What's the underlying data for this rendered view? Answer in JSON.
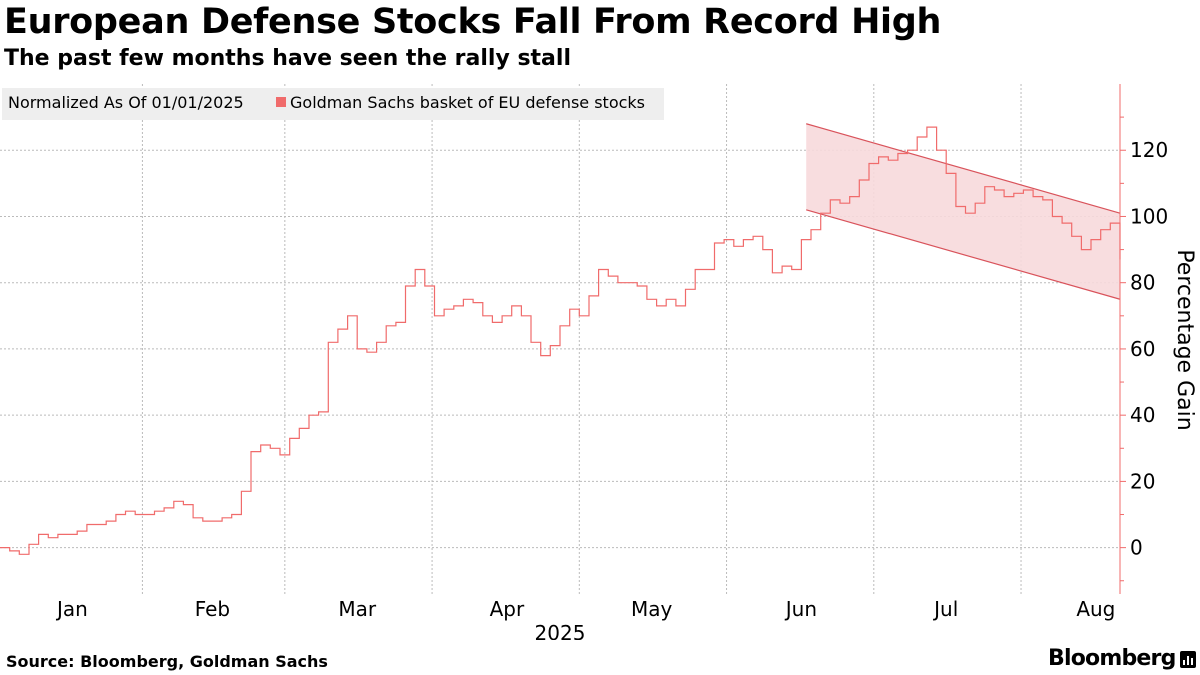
{
  "header": {
    "title": "European Defense Stocks Fall From Record High",
    "subtitle": "The past few months have seen the rally stall"
  },
  "legend": {
    "note": "Normalized As Of 01/01/2025",
    "series_label": "Goldman Sachs basket of EU defense stocks"
  },
  "footer": {
    "source": "Source: Bloomberg, Goldman Sachs",
    "brand": "Bloomberg"
  },
  "colors": {
    "series": "#f06b6b",
    "channel_fill": "#f7d9dc",
    "channel_line": "#d9535b",
    "axis": "#f06b6b",
    "grid": "#bbbbbb"
  },
  "chart_data": {
    "type": "line",
    "title": "European Defense Stocks Fall From Record High",
    "subtitle": "The past few months have seen the rally stall",
    "xlabel": "2025",
    "ylabel": "Percentage Gain",
    "y_axis_position": "right",
    "ylim": [
      -14,
      140
    ],
    "yticks": [
      0,
      20,
      40,
      60,
      80,
      100,
      120
    ],
    "x_range": [
      "2025-01-01",
      "2025-08-21"
    ],
    "xtick_labels": [
      {
        "label": "Jan",
        "date": "2025-01-16"
      },
      {
        "label": "Feb",
        "date": "2025-02-14"
      },
      {
        "label": "Mar",
        "date": "2025-03-16"
      },
      {
        "label": "Apr",
        "date": "2025-04-16"
      },
      {
        "label": "May",
        "date": "2025-05-16"
      },
      {
        "label": "Jun",
        "date": "2025-06-16"
      },
      {
        "label": "Jul",
        "date": "2025-07-16"
      },
      {
        "label": "Aug",
        "date": "2025-08-16"
      }
    ],
    "grid": true,
    "legend_placement": "top-left",
    "series": [
      {
        "name": "Goldman Sachs basket of EU defense stocks",
        "style": "step",
        "points": [
          [
            "2025-01-01",
            0
          ],
          [
            "2025-01-03",
            -1
          ],
          [
            "2025-01-05",
            -2
          ],
          [
            "2025-01-07",
            1
          ],
          [
            "2025-01-09",
            4
          ],
          [
            "2025-01-11",
            3
          ],
          [
            "2025-01-13",
            4
          ],
          [
            "2025-01-15",
            4
          ],
          [
            "2025-01-17",
            5
          ],
          [
            "2025-01-19",
            7
          ],
          [
            "2025-01-21",
            7
          ],
          [
            "2025-01-23",
            8
          ],
          [
            "2025-01-25",
            10
          ],
          [
            "2025-01-27",
            11
          ],
          [
            "2025-01-29",
            10
          ],
          [
            "2025-01-31",
            10
          ],
          [
            "2025-02-02",
            11
          ],
          [
            "2025-02-04",
            12
          ],
          [
            "2025-02-06",
            14
          ],
          [
            "2025-02-08",
            13
          ],
          [
            "2025-02-10",
            9
          ],
          [
            "2025-02-12",
            8
          ],
          [
            "2025-02-14",
            8
          ],
          [
            "2025-02-16",
            9
          ],
          [
            "2025-02-18",
            10
          ],
          [
            "2025-02-20",
            17
          ],
          [
            "2025-02-22",
            29
          ],
          [
            "2025-02-24",
            31
          ],
          [
            "2025-02-26",
            30
          ],
          [
            "2025-02-28",
            28
          ],
          [
            "2025-03-02",
            33
          ],
          [
            "2025-03-04",
            36
          ],
          [
            "2025-03-06",
            40
          ],
          [
            "2025-03-08",
            41
          ],
          [
            "2025-03-10",
            62
          ],
          [
            "2025-03-12",
            66
          ],
          [
            "2025-03-14",
            70
          ],
          [
            "2025-03-16",
            60
          ],
          [
            "2025-03-18",
            59
          ],
          [
            "2025-03-20",
            62
          ],
          [
            "2025-03-22",
            67
          ],
          [
            "2025-03-24",
            68
          ],
          [
            "2025-03-26",
            79
          ],
          [
            "2025-03-28",
            84
          ],
          [
            "2025-03-30",
            79
          ],
          [
            "2025-04-01",
            70
          ],
          [
            "2025-04-03",
            72
          ],
          [
            "2025-04-05",
            73
          ],
          [
            "2025-04-07",
            75
          ],
          [
            "2025-04-09",
            74
          ],
          [
            "2025-04-11",
            70
          ],
          [
            "2025-04-13",
            68
          ],
          [
            "2025-04-15",
            70
          ],
          [
            "2025-04-17",
            73
          ],
          [
            "2025-04-19",
            70
          ],
          [
            "2025-04-21",
            62
          ],
          [
            "2025-04-23",
            58
          ],
          [
            "2025-04-25",
            61
          ],
          [
            "2025-04-27",
            67
          ],
          [
            "2025-04-29",
            72
          ],
          [
            "2025-05-01",
            70
          ],
          [
            "2025-05-03",
            76
          ],
          [
            "2025-05-05",
            84
          ],
          [
            "2025-05-07",
            82
          ],
          [
            "2025-05-09",
            80
          ],
          [
            "2025-05-11",
            80
          ],
          [
            "2025-05-13",
            79
          ],
          [
            "2025-05-15",
            75
          ],
          [
            "2025-05-17",
            73
          ],
          [
            "2025-05-19",
            75
          ],
          [
            "2025-05-21",
            73
          ],
          [
            "2025-05-23",
            78
          ],
          [
            "2025-05-25",
            84
          ],
          [
            "2025-05-27",
            84
          ],
          [
            "2025-05-29",
            92
          ],
          [
            "2025-05-31",
            93
          ],
          [
            "2025-06-02",
            91
          ],
          [
            "2025-06-04",
            93
          ],
          [
            "2025-06-06",
            94
          ],
          [
            "2025-06-08",
            90
          ],
          [
            "2025-06-10",
            83
          ],
          [
            "2025-06-12",
            85
          ],
          [
            "2025-06-14",
            84
          ],
          [
            "2025-06-16",
            93
          ],
          [
            "2025-06-18",
            96
          ],
          [
            "2025-06-20",
            101
          ],
          [
            "2025-06-22",
            105
          ],
          [
            "2025-06-24",
            104
          ],
          [
            "2025-06-26",
            106
          ],
          [
            "2025-06-28",
            111
          ],
          [
            "2025-06-30",
            116
          ],
          [
            "2025-07-02",
            118
          ],
          [
            "2025-07-04",
            117
          ],
          [
            "2025-07-06",
            119
          ],
          [
            "2025-07-08",
            120
          ],
          [
            "2025-07-10",
            124
          ],
          [
            "2025-07-12",
            127
          ],
          [
            "2025-07-14",
            120
          ],
          [
            "2025-07-16",
            113
          ],
          [
            "2025-07-18",
            103
          ],
          [
            "2025-07-20",
            101
          ],
          [
            "2025-07-22",
            104
          ],
          [
            "2025-07-24",
            109
          ],
          [
            "2025-07-26",
            108
          ],
          [
            "2025-07-28",
            106
          ],
          [
            "2025-07-30",
            107
          ],
          [
            "2025-08-01",
            108
          ],
          [
            "2025-08-03",
            106
          ],
          [
            "2025-08-05",
            105
          ],
          [
            "2025-08-07",
            100
          ],
          [
            "2025-08-09",
            98
          ],
          [
            "2025-08-11",
            94
          ],
          [
            "2025-08-13",
            90
          ],
          [
            "2025-08-15",
            93
          ],
          [
            "2025-08-17",
            96
          ],
          [
            "2025-08-19",
            98
          ],
          [
            "2025-08-21",
            87
          ]
        ]
      }
    ],
    "annotations": [
      {
        "type": "channel",
        "upper": [
          [
            "2025-06-17",
            128
          ],
          [
            "2025-08-21",
            101
          ]
        ],
        "lower": [
          [
            "2025-06-17",
            102
          ],
          [
            "2025-08-21",
            75
          ]
        ]
      }
    ]
  }
}
